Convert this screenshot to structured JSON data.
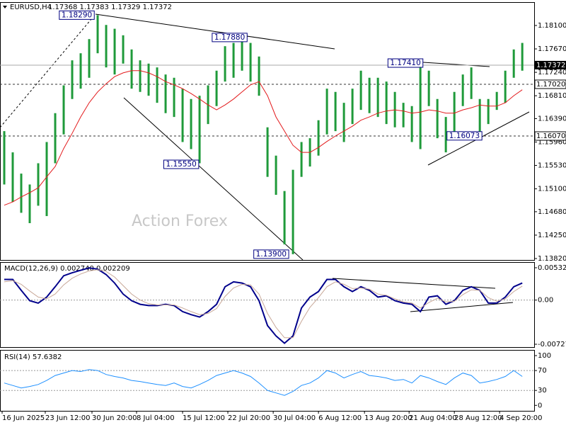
{
  "chart_data": [
    {
      "type": "range-bar",
      "title": "EURUSD,H4",
      "subtitle": "1.17368 1.17383 1.17329 1.17372",
      "watermark": "Action Forex",
      "x": [
        0,
        1,
        2,
        3,
        4,
        5,
        6,
        7,
        8,
        9,
        10,
        11,
        12,
        13,
        14,
        15,
        16,
        17,
        18,
        19,
        20,
        21,
        22,
        23,
        24,
        25,
        26,
        27,
        28,
        29,
        30,
        31,
        32,
        33,
        34,
        35,
        36,
        37,
        38,
        39,
        40,
        41,
        42,
        43,
        44,
        45,
        46,
        47,
        48,
        49,
        50,
        51,
        52,
        53,
        54,
        55,
        56,
        57,
        58,
        59,
        60,
        61
      ],
      "xlim": [
        -0.5,
        62.4
      ],
      "high": [
        1.1616,
        1.1577,
        1.1538,
        1.1518,
        1.1557,
        1.1596,
        1.1649,
        1.17,
        1.1746,
        1.1759,
        1.1785,
        1.1829,
        1.1811,
        1.1804,
        1.1792,
        1.1766,
        1.1746,
        1.174,
        1.1733,
        1.172,
        1.1714,
        1.1694,
        1.1675,
        1.1681,
        1.17,
        1.1727,
        1.1772,
        1.1778,
        1.1791,
        1.1778,
        1.1753,
        1.1623,
        1.1571,
        1.1506,
        1.1545,
        1.1596,
        1.1603,
        1.1636,
        1.1694,
        1.1688,
        1.1668,
        1.1694,
        1.1727,
        1.1714,
        1.1714,
        1.1707,
        1.1688,
        1.1668,
        1.1662,
        1.174,
        1.1727,
        1.1675,
        1.1642,
        1.1688,
        1.172,
        1.1733,
        1.1675,
        1.1675,
        1.1688,
        1.1727,
        1.1766,
        1.1778
      ],
      "low": [
        1.1518,
        1.1486,
        1.1466,
        1.1447,
        1.1479,
        1.146,
        1.1557,
        1.161,
        1.1675,
        1.1694,
        1.1714,
        1.1759,
        1.1733,
        1.172,
        1.174,
        1.1694,
        1.1688,
        1.1681,
        1.1668,
        1.1649,
        1.1642,
        1.1596,
        1.1583,
        1.1557,
        1.1629,
        1.1662,
        1.1707,
        1.1714,
        1.1727,
        1.1707,
        1.1681,
        1.1532,
        1.1499,
        1.1408,
        1.139,
        1.1532,
        1.1551,
        1.1571,
        1.161,
        1.1616,
        1.1596,
        1.1629,
        1.1655,
        1.1649,
        1.1642,
        1.1629,
        1.1623,
        1.1623,
        1.1596,
        1.1583,
        1.1662,
        1.1603,
        1.1577,
        1.161,
        1.1662,
        1.1675,
        1.1603,
        1.1629,
        1.1655,
        1.1668,
        1.1714,
        1.1727
      ],
      "color": "#1f9a3a",
      "ma": {
        "color": "#e31a1c",
        "values": [
          1.148,
          1.1486,
          1.1495,
          1.1503,
          1.1512,
          1.1532,
          1.1551,
          1.1584,
          1.1612,
          1.1642,
          1.1668,
          1.1688,
          1.1703,
          1.1716,
          1.1723,
          1.1727,
          1.1727,
          1.1723,
          1.1716,
          1.1707,
          1.1701,
          1.1694,
          1.1685,
          1.1675,
          1.1664,
          1.1655,
          1.1664,
          1.1675,
          1.1688,
          1.1701,
          1.1707,
          1.1681,
          1.1642,
          1.1616,
          1.159,
          1.1577,
          1.1577,
          1.1586,
          1.1597,
          1.1607,
          1.1616,
          1.1625,
          1.1636,
          1.1642,
          1.1649,
          1.1653,
          1.1655,
          1.1653,
          1.1649,
          1.1651,
          1.1655,
          1.1653,
          1.1649,
          1.1649,
          1.1655,
          1.1659,
          1.1664,
          1.1662,
          1.1662,
          1.1668,
          1.1681,
          1.1692
        ]
      },
      "ylim": [
        1.13794,
        1.18529
      ],
      "yticks": [
        {
          "value": 1.181,
          "label": "1.18100"
        },
        {
          "value": 1.1767,
          "label": "1.17670"
        },
        {
          "value": 1.1724,
          "label": "1.17240"
        },
        {
          "value": 1.1681,
          "label": "1.16810"
        },
        {
          "value": 1.1639,
          "label": "1.16390"
        },
        {
          "value": 1.1596,
          "label": "1.15960"
        },
        {
          "value": 1.1553,
          "label": "1.15530"
        },
        {
          "value": 1.151,
          "label": "1.15100"
        },
        {
          "value": 1.1468,
          "label": "1.14680"
        },
        {
          "value": 1.1425,
          "label": "1.14250"
        },
        {
          "value": 1.1382,
          "label": "1.13820"
        }
      ],
      "current": {
        "value": 1.17372,
        "label": "1.17372"
      },
      "levels": [
        {
          "value": 1.1702,
          "label": "1.17020"
        },
        {
          "value": 1.1607,
          "label": "1.16070"
        }
      ],
      "annotations": [
        {
          "x": 10.6,
          "value": 1.1829,
          "label": "1.18290"
        },
        {
          "x": 28.6,
          "value": 1.1788,
          "label": "1.17880"
        },
        {
          "x": 49.3,
          "value": 1.1741,
          "label": "1.17410"
        },
        {
          "x": 22.9,
          "value": 1.1555,
          "label": "1.15550"
        },
        {
          "x": 33.5,
          "value": 1.139,
          "label": "1.13900"
        },
        {
          "x": 56.25,
          "value": 1.16073,
          "label": "1.16073"
        }
      ]
    },
    {
      "type": "line",
      "title": "MACD(12,26,9) 0.002740 0.002209",
      "x": [
        0,
        1,
        2,
        3,
        4,
        5,
        6,
        7,
        8,
        9,
        10,
        11,
        12,
        13,
        14,
        15,
        16,
        17,
        18,
        19,
        20,
        21,
        22,
        23,
        24,
        25,
        26,
        27,
        28,
        29,
        30,
        31,
        32,
        33,
        34,
        35,
        36,
        37,
        38,
        39,
        40,
        41,
        42,
        43,
        44,
        45,
        46,
        47,
        48,
        49,
        50,
        51,
        52,
        53,
        54,
        55,
        56,
        57,
        58,
        59,
        60,
        61
      ],
      "xlim": [
        -0.5,
        62.4
      ],
      "ylim": [
        -0.00774,
        0.00614
      ],
      "yticks": [
        0.005325,
        {
          "value": 0,
          "label": "0.00"
        },
        -0.007273
      ],
      "hlines": [
        0
      ],
      "series": [
        {
          "color": "#00008b",
          "values": [
            0.0034,
            0.0034,
            0.0016,
            -0.0001,
            -0.0005,
            0.0005,
            0.0022,
            0.004,
            0.0045,
            0.0049,
            0.0053,
            0.0051,
            0.0042,
            0.0028,
            0.001,
            -0.0001,
            -0.0007,
            -0.0009,
            -0.0009,
            -0.0007,
            -0.0009,
            -0.0019,
            -0.0024,
            -0.0028,
            -0.0019,
            -0.0007,
            0.0022,
            0.003,
            0.0028,
            0.0022,
            -0.0001,
            -0.0042,
            -0.0059,
            -0.0071,
            -0.0059,
            -0.0013,
            0.0005,
            0.0014,
            0.0034,
            0.0034,
            0.0022,
            0.0014,
            0.0022,
            0.0016,
            0.0005,
            0.0007,
            -0.0001,
            -0.0005,
            -0.0007,
            -0.0019,
            0.0005,
            0.0007,
            -0.0007,
            -0.0001,
            0.0016,
            0.0022,
            0.0016,
            -0.0005,
            -0.0005,
            0.0005,
            0.0022,
            0.0028
          ]
        },
        {
          "color": "#c8a898",
          "values": [
            0.003,
            0.0032,
            0.0026,
            0.0015,
            0.0005,
            0.0002,
            0.001,
            0.0025,
            0.0036,
            0.0043,
            0.0048,
            0.005,
            0.0047,
            0.0038,
            0.0024,
            0.001,
            0,
            -0.0006,
            -0.0008,
            -0.0008,
            -0.0008,
            -0.0013,
            -0.0019,
            -0.0024,
            -0.0022,
            -0.0014,
            0.0006,
            0.002,
            0.0026,
            0.0025,
            0.001,
            -0.0022,
            -0.0045,
            -0.0062,
            -0.0062,
            -0.0035,
            -0.0012,
            0.0004,
            0.0022,
            0.003,
            0.0026,
            0.0019,
            0.002,
            0.0018,
            0.001,
            0.0008,
            0.0002,
            -0.0003,
            -0.0005,
            -0.0013,
            -0.0004,
            0.0003,
            -0.0003,
            -0.0002,
            0.0009,
            0.0017,
            0.0016,
            0.0004,
            -0.0002,
            0.0002,
            0.0014,
            0.0023
          ]
        }
      ]
    },
    {
      "type": "line",
      "title": "RSI(14) 57.6382",
      "x": [
        0,
        1,
        2,
        3,
        4,
        5,
        6,
        7,
        8,
        9,
        10,
        11,
        12,
        13,
        14,
        15,
        16,
        17,
        18,
        19,
        20,
        21,
        22,
        23,
        24,
        25,
        26,
        27,
        28,
        29,
        30,
        31,
        32,
        33,
        34,
        35,
        36,
        37,
        38,
        39,
        40,
        41,
        42,
        43,
        44,
        45,
        46,
        47,
        48,
        49,
        50,
        51,
        52,
        53,
        54,
        55,
        56,
        57,
        58,
        59,
        60,
        61
      ],
      "xlim": [
        -0.5,
        62.4
      ],
      "ylim": [
        -11,
        110
      ],
      "yticks": [
        100,
        70,
        30,
        0
      ],
      "hlines": [
        70,
        30
      ],
      "xticks": [
        {
          "value": -0.25,
          "label": "16 Jun 2025"
        },
        {
          "value": 4.83,
          "label": "23 Jun 12:00"
        },
        {
          "value": 10.33,
          "label": "30 Jun 20:00"
        },
        {
          "value": 15.58,
          "label": "8 Jul 04:00"
        },
        {
          "value": 21,
          "label": "15 Jul 12:00"
        },
        {
          "value": 26.33,
          "label": "22 Jul 20:00"
        },
        {
          "value": 31.67,
          "label": "30 Jul 04:00"
        },
        {
          "value": 37,
          "label": "6 Aug 12:00"
        },
        {
          "value": 42.42,
          "label": "13 Aug 20:00"
        },
        {
          "value": 47.67,
          "label": "21 Aug 04:00"
        },
        {
          "value": 53,
          "label": "28 Aug 12:00"
        },
        {
          "value": 58.33,
          "label": "4 Sep 20:00"
        }
      ],
      "series": [
        {
          "color": "#1e90ff",
          "values": [
            45,
            40,
            35,
            38,
            42,
            50,
            60,
            65,
            70,
            68,
            72,
            70,
            62,
            58,
            55,
            50,
            48,
            45,
            42,
            40,
            45,
            38,
            35,
            42,
            50,
            60,
            65,
            70,
            65,
            58,
            45,
            30,
            25,
            20,
            28,
            40,
            45,
            55,
            70,
            65,
            55,
            62,
            68,
            60,
            58,
            55,
            50,
            52,
            45,
            60,
            55,
            48,
            42,
            55,
            65,
            60,
            45,
            48,
            52,
            58,
            70,
            58
          ]
        }
      ]
    }
  ]
}
